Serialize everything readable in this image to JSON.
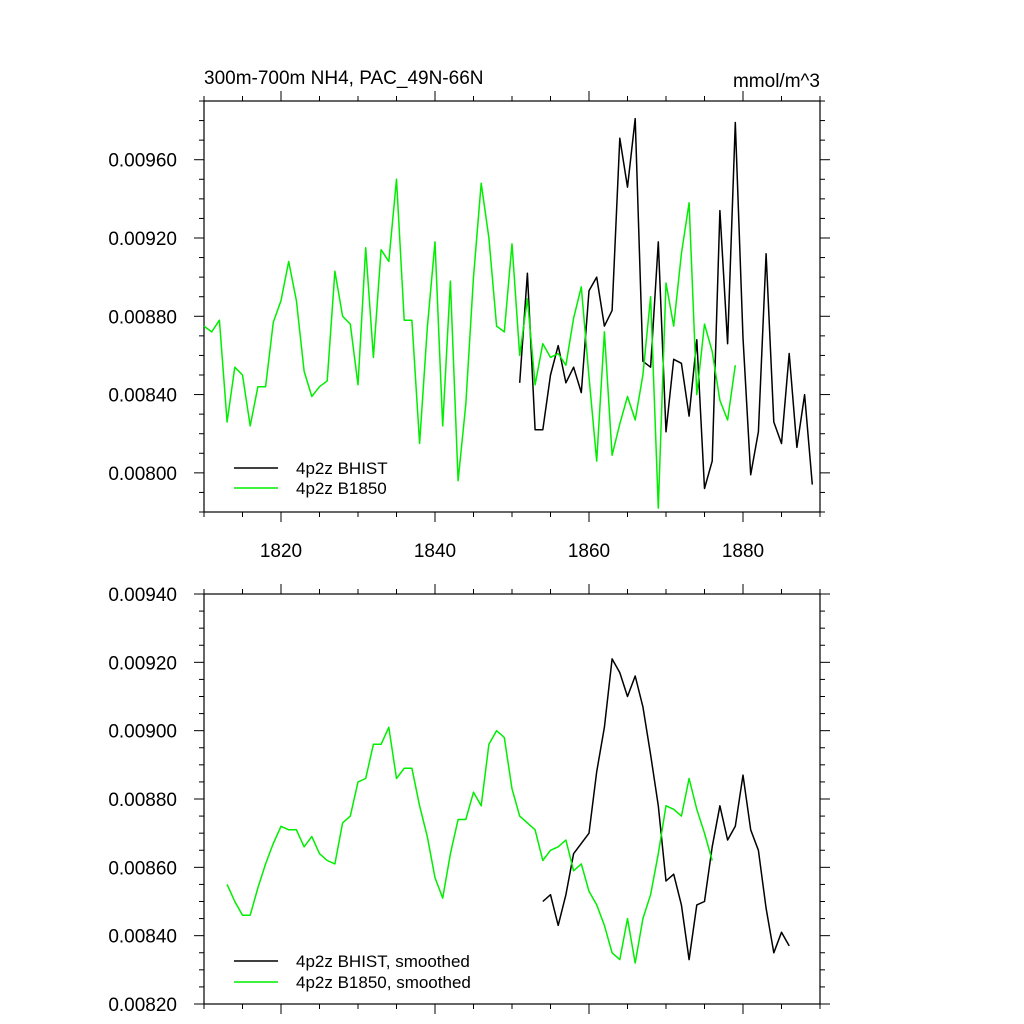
{
  "chart_data": [
    {
      "type": "line",
      "title_left": "300m-700m NH4, PAC_49N-66N",
      "title_right": "mmol/m^3",
      "xlim": [
        1810,
        1890
      ],
      "ylim": [
        0.0078,
        0.0099
      ],
      "xticks": [
        1820,
        1840,
        1860,
        1880
      ],
      "xtick_labels": [
        "1820",
        "1840",
        "1860",
        "1880"
      ],
      "yticks": [
        0.008,
        0.0084,
        0.0088,
        0.0092,
        0.0096
      ],
      "ytick_labels": [
        "0.00800",
        "0.00840",
        "0.00880",
        "0.00920",
        "0.00960"
      ],
      "series": [
        {
          "name": "4p2z BHIST",
          "color": "#000000",
          "x": [
            1851,
            1852,
            1853,
            1854,
            1855,
            1856,
            1857,
            1858,
            1859,
            1860,
            1861,
            1862,
            1863,
            1864,
            1865,
            1866,
            1867,
            1868,
            1869,
            1870,
            1871,
            1872,
            1873,
            1874,
            1875,
            1876,
            1877,
            1878,
            1879,
            1880,
            1881,
            1882,
            1883,
            1884,
            1885,
            1886,
            1887,
            1888,
            1889
          ],
          "values": [
            0.00846,
            0.00902,
            0.00822,
            0.00822,
            0.0085,
            0.00865,
            0.00846,
            0.00854,
            0.00841,
            0.00893,
            0.009,
            0.00875,
            0.00883,
            0.00971,
            0.00946,
            0.00981,
            0.00857,
            0.00854,
            0.00918,
            0.00821,
            0.00858,
            0.00856,
            0.00829,
            0.00868,
            0.00792,
            0.00806,
            0.00934,
            0.00866,
            0.00979,
            0.00869,
            0.00799,
            0.00821,
            0.00912,
            0.00826,
            0.00815,
            0.00861,
            0.00813,
            0.0084,
            0.00794
          ]
        },
        {
          "name": "4p2z B1850",
          "color": "#00ee00",
          "x": [
            1810,
            1811,
            1812,
            1813,
            1814,
            1815,
            1816,
            1817,
            1818,
            1819,
            1820,
            1821,
            1822,
            1823,
            1824,
            1825,
            1826,
            1827,
            1828,
            1829,
            1830,
            1831,
            1832,
            1833,
            1834,
            1835,
            1836,
            1837,
            1838,
            1839,
            1840,
            1841,
            1842,
            1843,
            1844,
            1845,
            1846,
            1847,
            1848,
            1849,
            1850,
            1851,
            1852,
            1853,
            1854,
            1855,
            1856,
            1857,
            1858,
            1859,
            1860,
            1861,
            1862,
            1863,
            1864,
            1865,
            1866,
            1867,
            1868,
            1869,
            1870,
            1871,
            1872,
            1873,
            1874,
            1875,
            1876,
            1877,
            1878,
            1879
          ],
          "values": [
            0.00875,
            0.00872,
            0.00878,
            0.00826,
            0.00854,
            0.0085,
            0.00824,
            0.00844,
            0.00844,
            0.00877,
            0.00888,
            0.00908,
            0.00888,
            0.00852,
            0.00839,
            0.00844,
            0.00847,
            0.00903,
            0.0088,
            0.00876,
            0.00845,
            0.00915,
            0.00859,
            0.00914,
            0.00908,
            0.0095,
            0.00878,
            0.00878,
            0.00815,
            0.00874,
            0.00918,
            0.00824,
            0.00898,
            0.00796,
            0.00835,
            0.009,
            0.00948,
            0.0092,
            0.00875,
            0.00872,
            0.00917,
            0.0086,
            0.00889,
            0.00845,
            0.00866,
            0.00859,
            0.00861,
            0.00855,
            0.00879,
            0.00895,
            0.00849,
            0.00806,
            0.00872,
            0.00809,
            0.00825,
            0.00839,
            0.00827,
            0.0085,
            0.0089,
            0.00782,
            0.00897,
            0.00875,
            0.00912,
            0.00938,
            0.0084,
            0.00876,
            0.00862,
            0.00837,
            0.00827,
            0.00855
          ]
        }
      ],
      "legend": [
        "4p2z BHIST",
        "4p2z B1850"
      ],
      "legend_position": "bottom-left"
    },
    {
      "type": "line",
      "xlim": [
        1810,
        1890
      ],
      "ylim": [
        0.0082,
        0.0094
      ],
      "xticks": [
        1820,
        1840,
        1860,
        1880
      ],
      "yticks": [
        0.0082,
        0.0084,
        0.0086,
        0.0088,
        0.009,
        0.0092,
        0.0094
      ],
      "ytick_labels": [
        "0.00820",
        "0.00840",
        "0.00860",
        "0.00880",
        "0.00900",
        "0.00920",
        "0.00940"
      ],
      "series": [
        {
          "name": "4p2z BHIST, smoothed",
          "color": "#000000",
          "x": [
            1854,
            1855,
            1856,
            1857,
            1858,
            1859,
            1860,
            1861,
            1862,
            1863,
            1864,
            1865,
            1866,
            1867,
            1868,
            1869,
            1870,
            1871,
            1872,
            1873,
            1874,
            1875,
            1876,
            1877,
            1878,
            1879,
            1880,
            1881,
            1882,
            1883,
            1884,
            1885,
            1886
          ],
          "values": [
            0.0085,
            0.00852,
            0.00843,
            0.00852,
            0.00864,
            0.00867,
            0.0087,
            0.00888,
            0.00901,
            0.00921,
            0.00917,
            0.0091,
            0.00916,
            0.00907,
            0.00893,
            0.00878,
            0.00856,
            0.00858,
            0.00849,
            0.00833,
            0.00849,
            0.0085,
            0.00866,
            0.00878,
            0.00868,
            0.00872,
            0.00887,
            0.00871,
            0.00865,
            0.00848,
            0.00835,
            0.00841,
            0.00837
          ]
        },
        {
          "name": "4p2z B1850, smoothed",
          "color": "#00ee00",
          "x": [
            1813,
            1814,
            1815,
            1816,
            1817,
            1818,
            1819,
            1820,
            1821,
            1822,
            1823,
            1824,
            1825,
            1826,
            1827,
            1828,
            1829,
            1830,
            1831,
            1832,
            1833,
            1834,
            1835,
            1836,
            1837,
            1838,
            1839,
            1840,
            1841,
            1842,
            1843,
            1844,
            1845,
            1846,
            1847,
            1848,
            1849,
            1850,
            1851,
            1852,
            1853,
            1854,
            1855,
            1856,
            1857,
            1858,
            1859,
            1860,
            1861,
            1862,
            1863,
            1864,
            1865,
            1866,
            1867,
            1868,
            1869,
            1870,
            1871,
            1872,
            1873,
            1874,
            1875,
            1876
          ],
          "values": [
            0.00855,
            0.0085,
            0.00846,
            0.00846,
            0.00854,
            0.00861,
            0.00867,
            0.00872,
            0.00871,
            0.00871,
            0.00866,
            0.00869,
            0.00864,
            0.00862,
            0.00861,
            0.00873,
            0.00875,
            0.00885,
            0.00886,
            0.00896,
            0.00896,
            0.00901,
            0.00886,
            0.00889,
            0.00889,
            0.00878,
            0.00869,
            0.00857,
            0.00851,
            0.00864,
            0.00874,
            0.00874,
            0.00882,
            0.00878,
            0.00896,
            0.009,
            0.00898,
            0.00883,
            0.00875,
            0.00873,
            0.00871,
            0.00862,
            0.00865,
            0.00866,
            0.00868,
            0.00859,
            0.00861,
            0.00853,
            0.00849,
            0.00843,
            0.00835,
            0.00833,
            0.00845,
            0.00832,
            0.00845,
            0.00852,
            0.00864,
            0.00878,
            0.00877,
            0.00875,
            0.00886,
            0.00877,
            0.0087,
            0.00862
          ]
        }
      ],
      "legend": [
        "4p2z BHIST, smoothed",
        "4p2z B1850, smoothed"
      ],
      "legend_position": "bottom-left"
    }
  ]
}
